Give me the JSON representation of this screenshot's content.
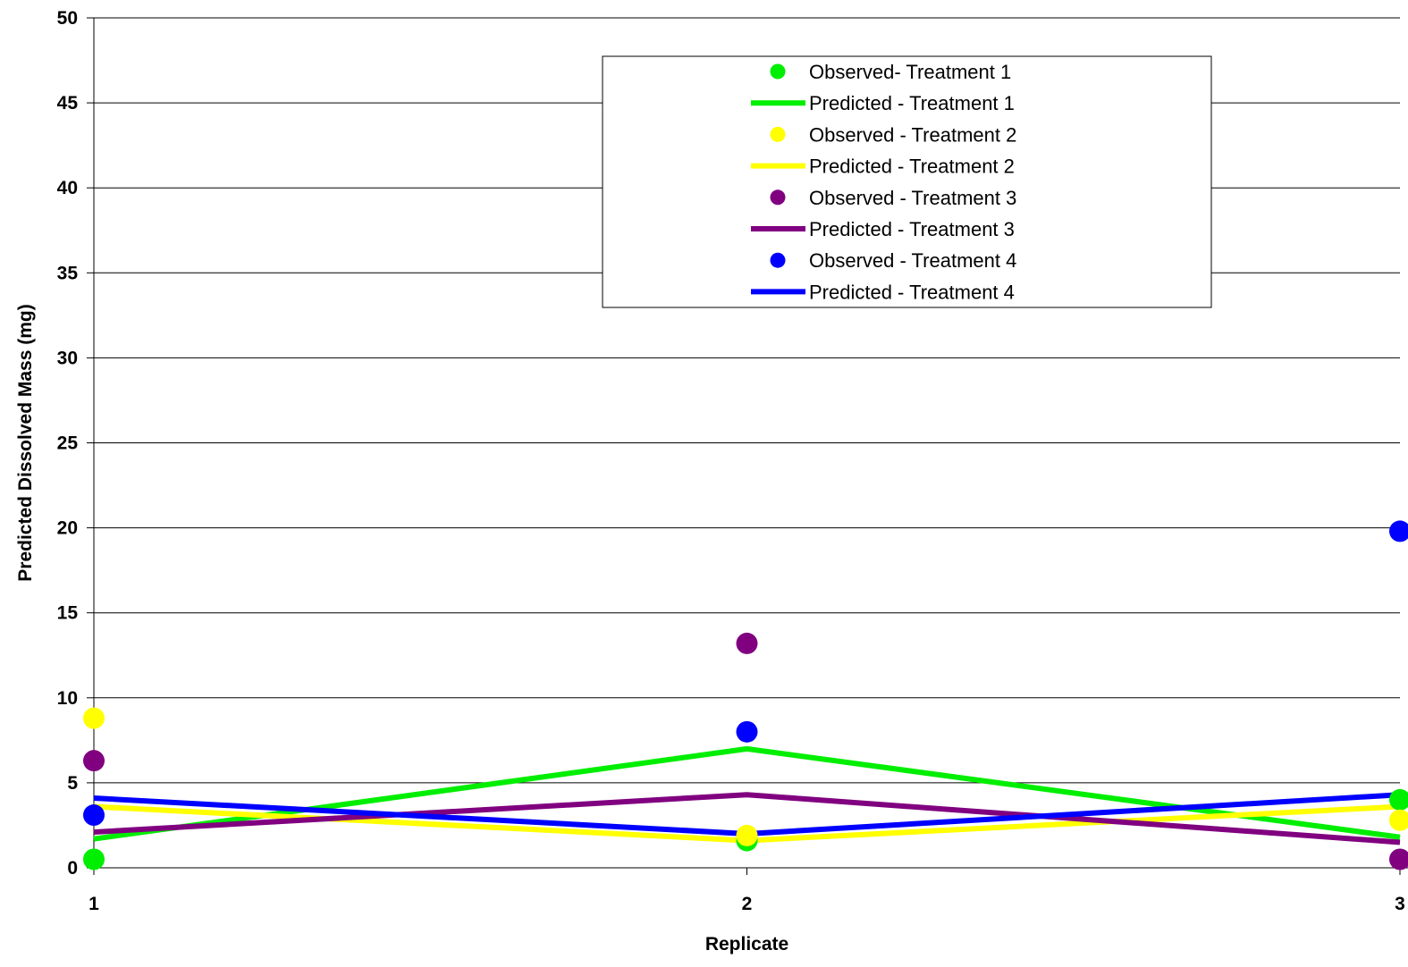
{
  "chart_data": {
    "type": "line",
    "title": "",
    "xlabel": "Replicate",
    "ylabel": "Predicted Dissolved Mass (mg)",
    "categories": [
      "1",
      "2",
      "3"
    ],
    "xlim": [
      1,
      3
    ],
    "ylim": [
      0,
      50
    ],
    "yticks": [
      "0",
      "5",
      "10",
      "15",
      "20",
      "25",
      "30",
      "35",
      "40",
      "45",
      "50"
    ],
    "grid": "horizontal",
    "legend_position": "top-center",
    "series": [
      {
        "name": "Observed- Treatment 1",
        "kind": "scatter",
        "color": "#00ee00",
        "values": [
          0.5,
          1.6,
          4.0
        ]
      },
      {
        "name": "Predicted - Treatment 1",
        "kind": "line",
        "color": "#00ee00",
        "values": [
          1.7,
          7.0,
          1.8
        ]
      },
      {
        "name": "Observed - Treatment 2",
        "kind": "scatter",
        "color": "#ffff00",
        "values": [
          8.8,
          1.9,
          2.8
        ]
      },
      {
        "name": "Predicted - Treatment 2",
        "kind": "line",
        "color": "#ffff00",
        "values": [
          3.6,
          1.6,
          3.6
        ]
      },
      {
        "name": "Observed - Treatment 3",
        "kind": "scatter",
        "color": "#800080",
        "values": [
          6.3,
          13.2,
          0.5
        ]
      },
      {
        "name": "Predicted - Treatment 3",
        "kind": "line",
        "color": "#800080",
        "values": [
          2.1,
          4.3,
          1.5
        ]
      },
      {
        "name": "Observed - Treatment 4",
        "kind": "scatter",
        "color": "#0000ff",
        "values": [
          3.1,
          8.0,
          19.8
        ]
      },
      {
        "name": "Predicted - Treatment 4",
        "kind": "line",
        "color": "#0000ff",
        "values": [
          4.1,
          2.0,
          4.3
        ]
      }
    ]
  }
}
